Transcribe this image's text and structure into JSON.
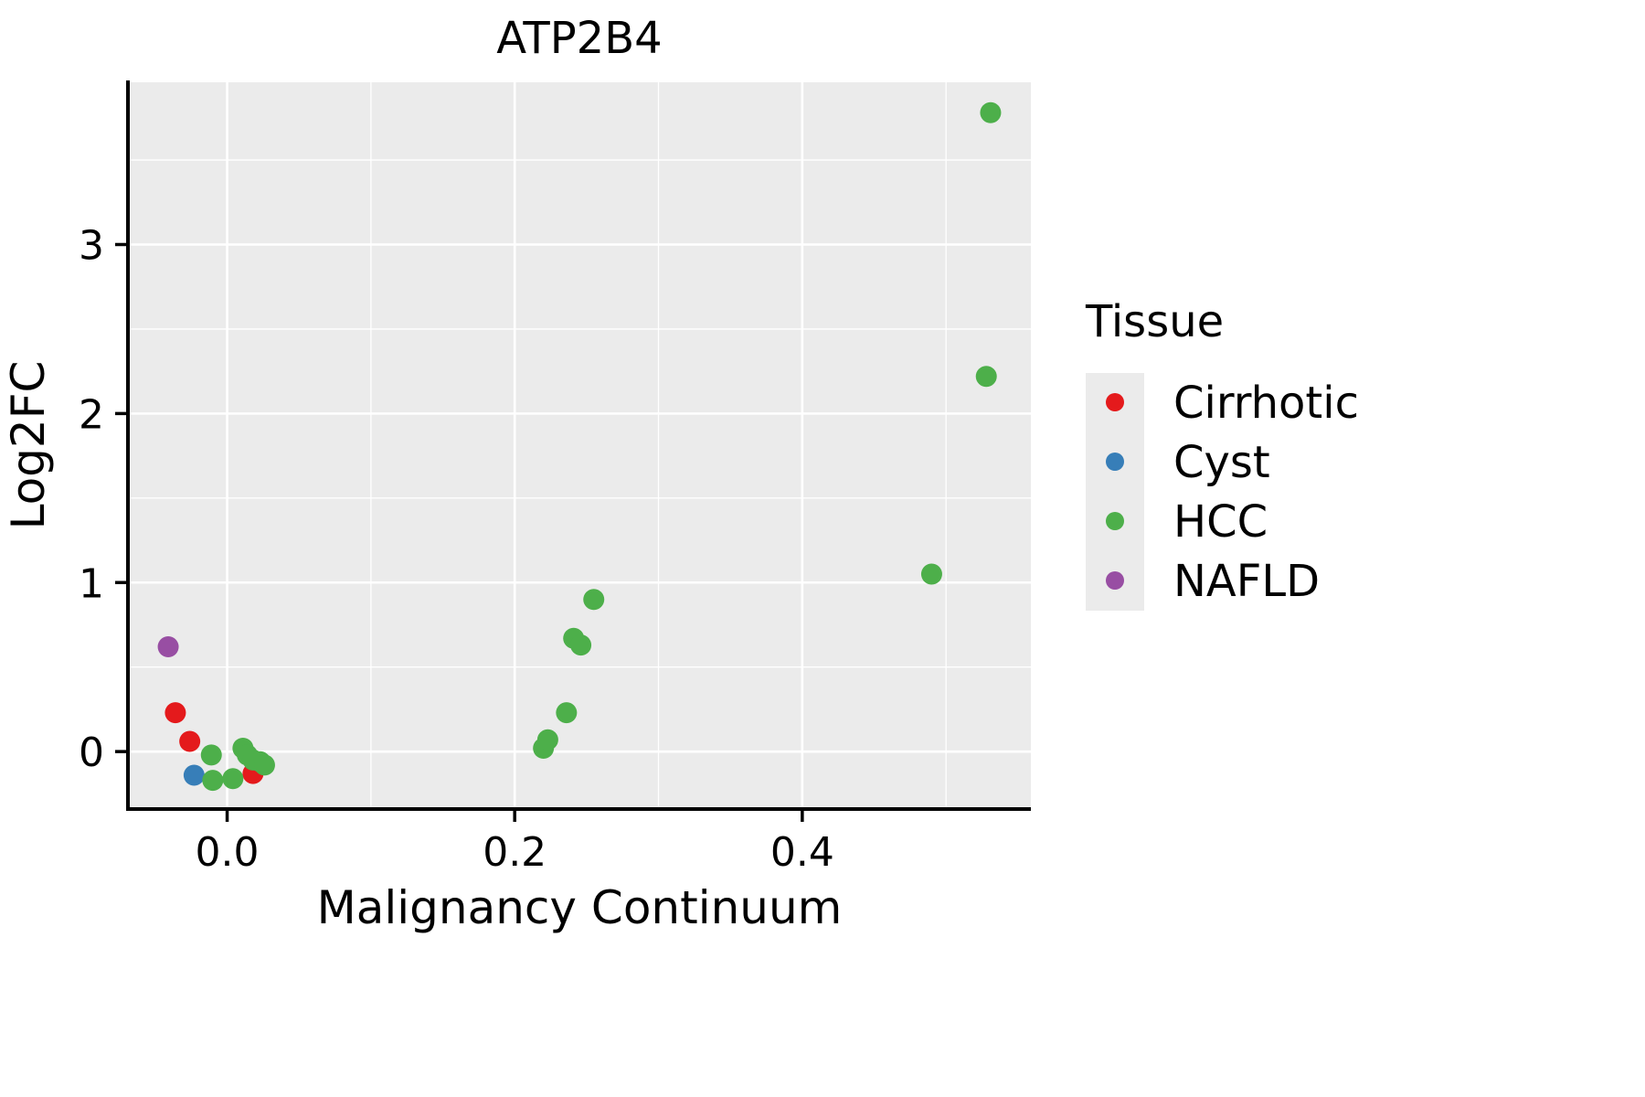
{
  "chart_data": {
    "type": "scatter",
    "title": "ATP2B4",
    "xlabel": "Malignancy Continuum",
    "ylabel": "Log2FC",
    "xlim": [
      -0.069,
      0.559
    ],
    "ylim": [
      -0.34,
      3.96
    ],
    "grid": true,
    "panel_background": "#EBEBEB",
    "grid_color": "#FFFFFF",
    "x_ticks": {
      "values": [
        0.0,
        0.2,
        0.4
      ],
      "labels": [
        "0.0",
        "0.2",
        "0.4"
      ],
      "minor": [
        0.1,
        0.3,
        0.5
      ]
    },
    "y_ticks": {
      "values": [
        0,
        1,
        2,
        3
      ],
      "labels": [
        "0",
        "1",
        "2",
        "3"
      ],
      "minor": [
        0.5,
        1.5,
        2.5,
        3.5
      ]
    },
    "legend": {
      "title": "Tissue",
      "position": "right",
      "key_background": "#EBEBEB",
      "items": [
        {
          "label": "Cirrhotic",
          "color": "#E41A1C"
        },
        {
          "label": "Cyst",
          "color": "#377EB8"
        },
        {
          "label": "HCC",
          "color": "#4DAF4A"
        },
        {
          "label": "NAFLD",
          "color": "#984EA3"
        }
      ]
    },
    "series": [
      {
        "name": "Cirrhotic",
        "color": "#E41A1C",
        "points": [
          [
            -0.036,
            0.23
          ],
          [
            -0.026,
            0.06
          ],
          [
            0.018,
            -0.13
          ]
        ]
      },
      {
        "name": "Cyst",
        "color": "#377EB8",
        "points": [
          [
            -0.023,
            -0.14
          ]
        ]
      },
      {
        "name": "HCC",
        "color": "#4DAF4A",
        "points": [
          [
            -0.011,
            -0.02
          ],
          [
            -0.01,
            -0.17
          ],
          [
            0.004,
            -0.16
          ],
          [
            0.011,
            0.02
          ],
          [
            0.014,
            -0.02
          ],
          [
            0.018,
            -0.05
          ],
          [
            0.023,
            -0.06
          ],
          [
            0.026,
            -0.08
          ],
          [
            0.22,
            0.02
          ],
          [
            0.223,
            0.07
          ],
          [
            0.236,
            0.23
          ],
          [
            0.241,
            0.67
          ],
          [
            0.246,
            0.63
          ],
          [
            0.255,
            0.9
          ],
          [
            0.49,
            1.05
          ],
          [
            0.528,
            2.22
          ],
          [
            0.531,
            3.78
          ]
        ]
      },
      {
        "name": "NAFLD",
        "color": "#984EA3",
        "points": [
          [
            -0.041,
            0.62
          ]
        ]
      }
    ]
  }
}
